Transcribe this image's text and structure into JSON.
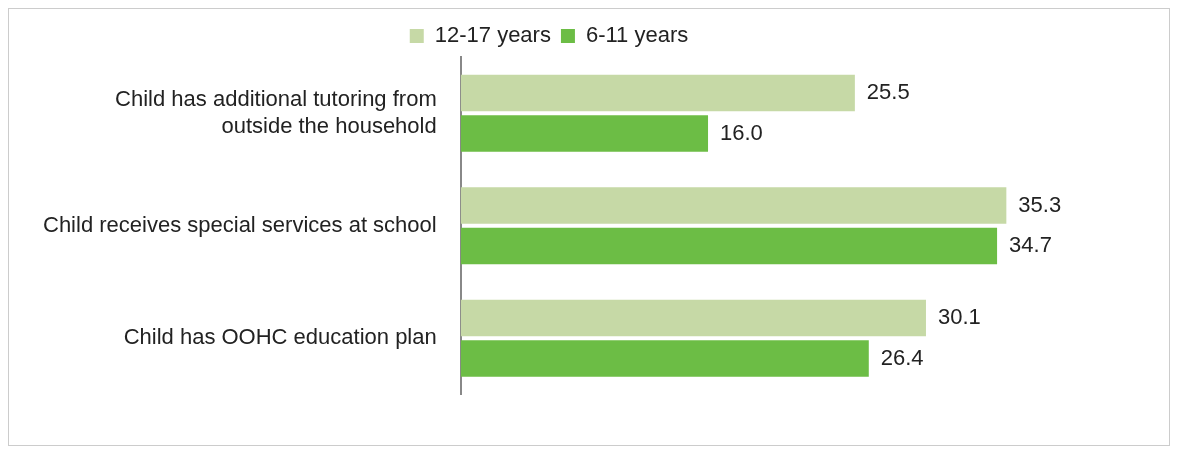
{
  "chart_data": {
    "type": "bar",
    "orientation": "horizontal",
    "categories": [
      "Child has additional tutoring from outside the household",
      "Child receives special services at school",
      "Child has OOHC education plan"
    ],
    "series": [
      {
        "name": "12-17 years",
        "color": "#c6d9a6",
        "values": [
          25.5,
          35.3,
          30.1
        ],
        "value_labels": [
          "25.5",
          "35.3",
          "30.1"
        ]
      },
      {
        "name": "6-11 years",
        "color": "#6cbd45",
        "values": [
          16,
          34.7,
          26.4
        ],
        "value_labels": [
          "16.0",
          "34.7",
          "26.4"
        ]
      }
    ],
    "legend": "top",
    "grid": false
  }
}
